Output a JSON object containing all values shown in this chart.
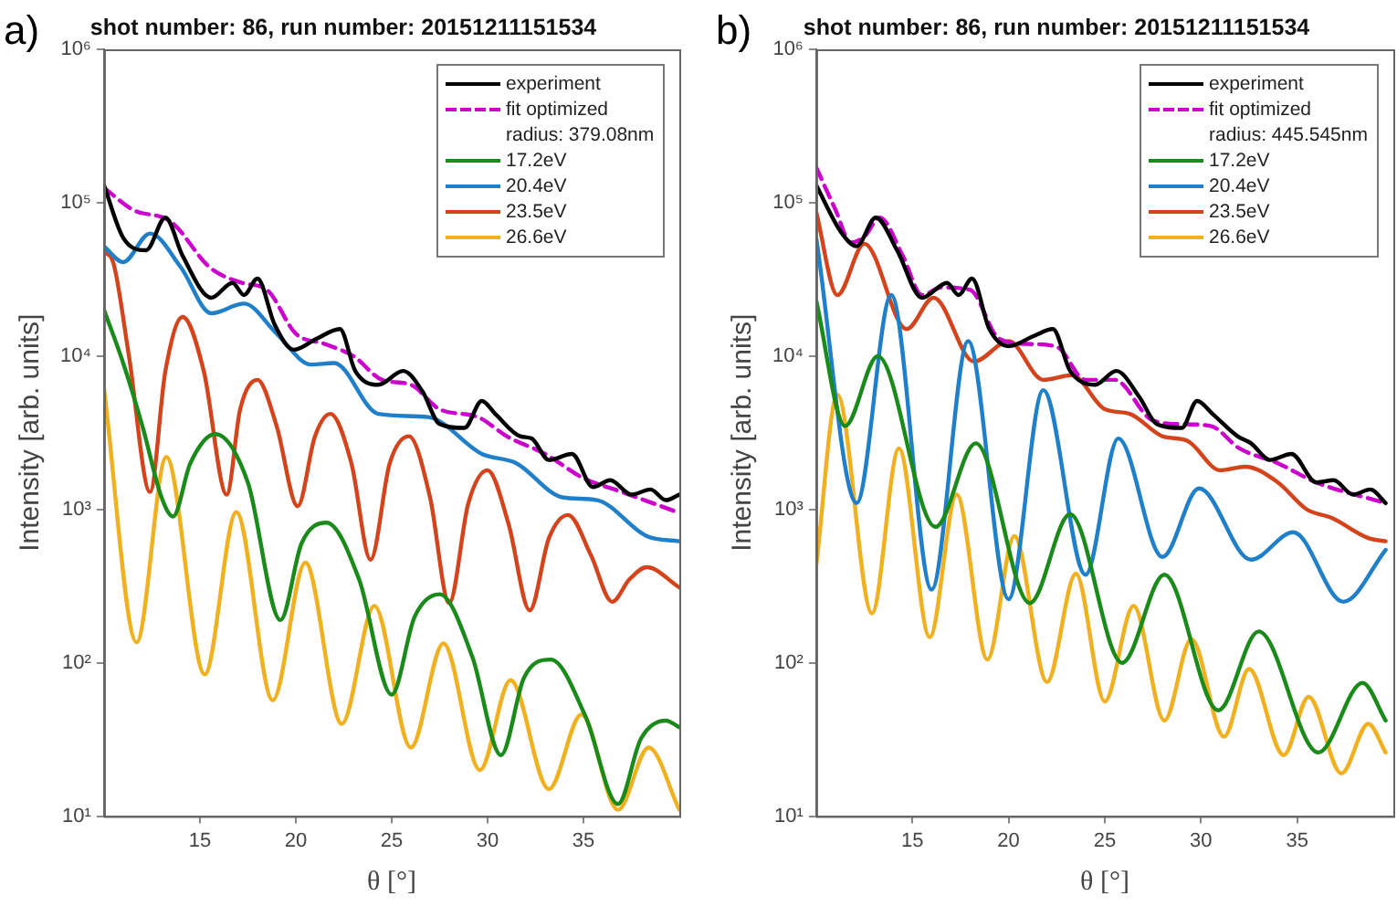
{
  "chart_data": [
    {
      "type": "line",
      "title": "shot number: 86, run number: 20151211151534",
      "xlabel": "θ [°]",
      "ylabel": "Intensity [arb. units]",
      "annotations": [
        "a)",
        "radius: 379.08nm"
      ],
      "xlim": [
        10,
        40
      ],
      "xticks": [
        15,
        20,
        25,
        30,
        35
      ],
      "ylim": [
        10,
        1000000
      ],
      "yticks": [
        {
          "value": 10,
          "label": "10¹"
        },
        {
          "value": 100,
          "label": "10²"
        },
        {
          "value": 1000,
          "label": "10³"
        },
        {
          "value": 10000,
          "label": "10⁴"
        },
        {
          "value": 100000,
          "label": "10⁵"
        },
        {
          "value": 1000000,
          "label": "10⁶"
        }
      ],
      "log": "y",
      "grid": false,
      "legend": "top right",
      "marker": "none",
      "series": [
        {
          "name": "experiment",
          "color": "#000000",
          "line_style": "solid",
          "x": [
            10,
            11,
            12.2,
            13.2,
            14.1,
            15.6,
            16.7,
            17.3,
            18,
            18.9,
            19.9,
            21.1,
            22.3,
            23.1,
            24.3,
            25.6,
            26.6,
            27.5,
            28.8,
            29.7,
            30.4,
            31.7,
            32.3,
            33.2,
            34.4,
            35.5,
            36.4,
            37.5,
            38.5,
            39.3,
            40
          ],
          "values": [
            130000,
            59000,
            49000,
            80000,
            45000,
            24000,
            30000,
            25000,
            32000,
            16000,
            11000,
            13000,
            15000,
            8000,
            6500,
            8000,
            5900,
            3600,
            3400,
            5100,
            4200,
            3000,
            2900,
            2100,
            2300,
            1400,
            1550,
            1250,
            1350,
            1150,
            1250
          ]
        },
        {
          "name": "fit optimized",
          "color": "#cc00cc",
          "line_style": "dashed",
          "x": [
            10,
            11.5,
            13.5,
            15.5,
            17.2,
            18.5,
            20,
            21.5,
            23,
            24.5,
            26,
            27.5,
            29.5,
            31,
            33,
            35,
            37,
            40
          ],
          "values": [
            125000,
            90000,
            75000,
            38000,
            30000,
            27000,
            14000,
            12000,
            10000,
            7000,
            6500,
            4500,
            4000,
            3000,
            2300,
            1600,
            1300,
            950
          ]
        },
        {
          "name": "17.2eV",
          "color": "#1a8a1a",
          "line_style": "solid",
          "x": [
            10,
            11,
            12,
            13,
            13.6,
            14.5,
            15.8,
            17.5,
            19.2,
            20.3,
            21.6,
            23.3,
            25,
            26.2,
            27.5,
            29.2,
            30.7,
            31.9,
            33.3,
            35.1,
            36.8,
            38,
            39.3,
            40
          ],
          "values": [
            20000,
            9000,
            3500,
            1200,
            900,
            2000,
            3100,
            1500,
            190,
            600,
            820,
            350,
            62,
            200,
            280,
            110,
            25,
            80,
            105,
            45,
            12,
            32,
            42,
            38
          ]
        },
        {
          "name": "20.4eV",
          "color": "#1f7fc9",
          "line_style": "solid",
          "x": [
            10,
            11,
            12.4,
            14,
            15.6,
            17.3,
            19,
            20.8,
            22,
            24.3,
            26.9,
            29.7,
            31.5,
            33.9,
            35.7,
            38.3,
            40
          ],
          "values": [
            52000,
            41000,
            63000,
            38000,
            19000,
            22000,
            14000,
            8800,
            9000,
            4200,
            4000,
            2300,
            2000,
            1200,
            1150,
            670,
            620
          ]
        },
        {
          "name": "23.5eV",
          "color": "#d4441c",
          "line_style": "solid",
          "x": [
            10,
            10.5,
            11.3,
            12.4,
            13.2,
            14.1,
            15.2,
            16.4,
            17.1,
            18,
            19,
            20.1,
            21,
            21.8,
            22.9,
            23.9,
            24.9,
            25.9,
            27,
            28,
            29,
            30,
            31.1,
            32.2,
            33.2,
            34.2,
            35.4,
            36.5,
            37.4,
            38.3,
            40
          ],
          "values": [
            48000,
            40000,
            10000,
            1300,
            8000,
            18000,
            8000,
            1250,
            4500,
            7000,
            3500,
            1050,
            3000,
            4200,
            2000,
            470,
            2000,
            3000,
            1200,
            245,
            1100,
            1800,
            800,
            220,
            650,
            920,
            500,
            250,
            350,
            420,
            310
          ]
        },
        {
          "name": "26.6eV",
          "color": "#f0b020",
          "line_style": "solid",
          "x": [
            10,
            11.7,
            13.25,
            15.25,
            16.9,
            18.8,
            20.5,
            22.4,
            24.1,
            26,
            27.7,
            29.6,
            31.2,
            33.2,
            34.9,
            36.8,
            38.4,
            40
          ],
          "values": [
            6100,
            136,
            2200,
            84,
            960,
            57,
            450,
            40,
            235,
            28,
            134,
            20,
            77,
            15,
            46,
            11,
            28,
            11
          ]
        }
      ]
    },
    {
      "type": "line",
      "title": "shot number: 86, run number: 20151211151534",
      "xlabel": "θ [°]",
      "ylabel": "Intensity [arb. units]",
      "annotations": [
        "b)",
        "radius: 445.545nm"
      ],
      "xlim": [
        10,
        40
      ],
      "xticks": [
        15,
        20,
        25,
        30,
        35
      ],
      "ylim": [
        10,
        1000000
      ],
      "yticks": [
        {
          "value": 10,
          "label": "10¹"
        },
        {
          "value": 100,
          "label": "10²"
        },
        {
          "value": 1000,
          "label": "10³"
        },
        {
          "value": 10000,
          "label": "10⁴"
        },
        {
          "value": 100000,
          "label": "10⁵"
        },
        {
          "value": 1000000,
          "label": "10⁶"
        }
      ],
      "log": "y",
      "grid": false,
      "legend": "top right",
      "marker": "none",
      "series": [
        {
          "name": "experiment",
          "color": "#000000",
          "line_style": "solid",
          "x": [
            10,
            11.3,
            12.1,
            13.1,
            14.2,
            15.5,
            16.8,
            17.4,
            18.1,
            19,
            20,
            21.3,
            22.3,
            23.2,
            24.5,
            25.6,
            26.8,
            27.7,
            29,
            29.8,
            30.6,
            31.9,
            32.6,
            33.6,
            34.7,
            36,
            36.9,
            37.9,
            38.8,
            39.6
          ],
          "values": [
            130000,
            64000,
            52000,
            80000,
            49000,
            24000,
            30000,
            25000,
            32000,
            15000,
            11600,
            13500,
            15000,
            8000,
            6500,
            8000,
            5400,
            3600,
            3400,
            5100,
            4200,
            3000,
            2700,
            2100,
            2300,
            1500,
            1550,
            1250,
            1350,
            1100
          ]
        },
        {
          "name": "fit optimized",
          "color": "#cc00cc",
          "line_style": "dashed",
          "x": [
            10,
            11,
            11.8,
            12.5,
            13.3,
            14.5,
            15.5,
            16.5,
            18,
            19.5,
            21,
            22.5,
            24,
            25.5,
            27.5,
            29,
            30.5,
            32,
            34,
            36,
            39.6
          ],
          "values": [
            170000,
            90000,
            55000,
            60000,
            80000,
            45000,
            25000,
            28000,
            27000,
            13000,
            12000,
            11500,
            7000,
            7000,
            3800,
            3600,
            3500,
            2500,
            2000,
            1500,
            1100
          ]
        },
        {
          "name": "17.2eV",
          "color": "#1a8a1a",
          "line_style": "solid",
          "x": [
            10,
            11.5,
            13.2,
            16.2,
            18.3,
            21.1,
            23.2,
            25.9,
            28.1,
            30.9,
            33,
            36.1,
            38.4,
            39.6
          ],
          "values": [
            23000,
            3500,
            10000,
            770,
            2700,
            245,
            930,
            100,
            375,
            49,
            160,
            26,
            74,
            42
          ]
        },
        {
          "name": "20.4eV",
          "color": "#1f7fc9",
          "line_style": "solid",
          "x": [
            10,
            12.1,
            13.9,
            16,
            17.9,
            20,
            21.8,
            24,
            25.7,
            28,
            29.9,
            32.6,
            34.8,
            37.4,
            39.6
          ],
          "values": [
            59000,
            1100,
            25000,
            300,
            12500,
            260,
            6000,
            375,
            2900,
            490,
            1370,
            470,
            710,
            250,
            545
          ]
        },
        {
          "name": "23.5eV",
          "color": "#d4441c",
          "line_style": "solid",
          "x": [
            10,
            11.1,
            12.5,
            14.7,
            16.1,
            18.2,
            20,
            21.8,
            23.3,
            25,
            26.3,
            28,
            29.3,
            31,
            32.3,
            34,
            35.5,
            36.8,
            38.7,
            39.6
          ],
          "values": [
            87000,
            25000,
            54000,
            15000,
            24000,
            9200,
            12500,
            7000,
            7500,
            4500,
            4200,
            3000,
            2800,
            1800,
            1900,
            1500,
            1000,
            880,
            650,
            620
          ]
        },
        {
          "name": "26.6eV",
          "color": "#f0b020",
          "line_style": "solid",
          "x": [
            10,
            11.1,
            12.9,
            14.3,
            15.9,
            17.3,
            18.9,
            20.3,
            22,
            23.5,
            25,
            26.5,
            28.1,
            29.5,
            31.2,
            32.5,
            34.3,
            35.6,
            37.3,
            38.7,
            39.6
          ],
          "values": [
            430,
            5600,
            210,
            2500,
            147,
            1250,
            105,
            670,
            75,
            380,
            56,
            235,
            42,
            143,
            33,
            91,
            25,
            60,
            19,
            40,
            26
          ]
        }
      ]
    }
  ]
}
